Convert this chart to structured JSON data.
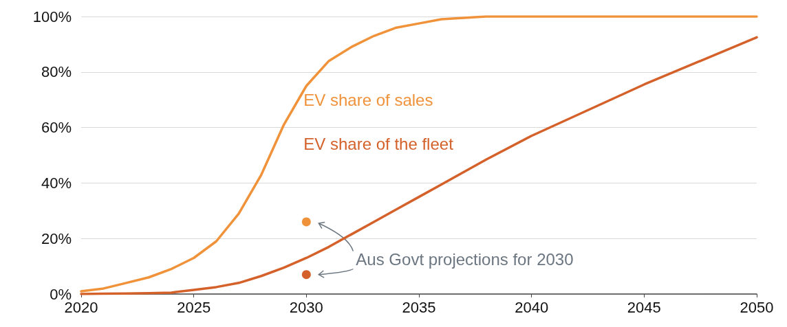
{
  "chart_data": {
    "type": "line",
    "x": [
      2020,
      2021,
      2022,
      2023,
      2024,
      2025,
      2026,
      2027,
      2028,
      2029,
      2030,
      2031,
      2032,
      2033,
      2034,
      2035,
      2036,
      2037,
      2038,
      2040,
      2045,
      2050
    ],
    "series": [
      {
        "name": "EV share of sales",
        "color": "#f0923a",
        "values": [
          1,
          2,
          4,
          6,
          9,
          13,
          19,
          29,
          43,
          61,
          75,
          84,
          89,
          93,
          96,
          97.5,
          99,
          99.5,
          100,
          100,
          100,
          100
        ]
      },
      {
        "name": "EV share of the fleet",
        "color": "#d4602a",
        "values": [
          0,
          0.1,
          0.2,
          0.3,
          0.5,
          1.5,
          2.5,
          4,
          6.5,
          9.5,
          13,
          17,
          21.5,
          26,
          30.5,
          35,
          39.5,
          44,
          48.5,
          57,
          75.5,
          92.5
        ]
      },
      {
        "type": "scatter",
        "color": "#f0923a",
        "marker": "circle",
        "x": [
          2030
        ],
        "values": [
          26
        ]
      },
      {
        "type": "scatter",
        "color": "#d4602a",
        "marker": "circle",
        "x": [
          2030
        ],
        "values": [
          7
        ]
      }
    ],
    "annotations": [
      "Aus Govt projections for 2030"
    ],
    "xlim": [
      2020,
      2050
    ],
    "xticks": [
      2020,
      2025,
      2030,
      2035,
      2040,
      2045,
      2050
    ],
    "ylim": [
      0,
      100
    ],
    "yticks": [
      {
        "value": 0,
        "label": "0%"
      },
      {
        "value": 20,
        "label": "20%"
      },
      {
        "value": 40,
        "label": "40%"
      },
      {
        "value": 60,
        "label": "60%"
      },
      {
        "value": 80,
        "label": "80%"
      },
      {
        "value": 100,
        "label": "100%"
      }
    ],
    "grid": "y",
    "legend": false,
    "line_style": "solid"
  }
}
